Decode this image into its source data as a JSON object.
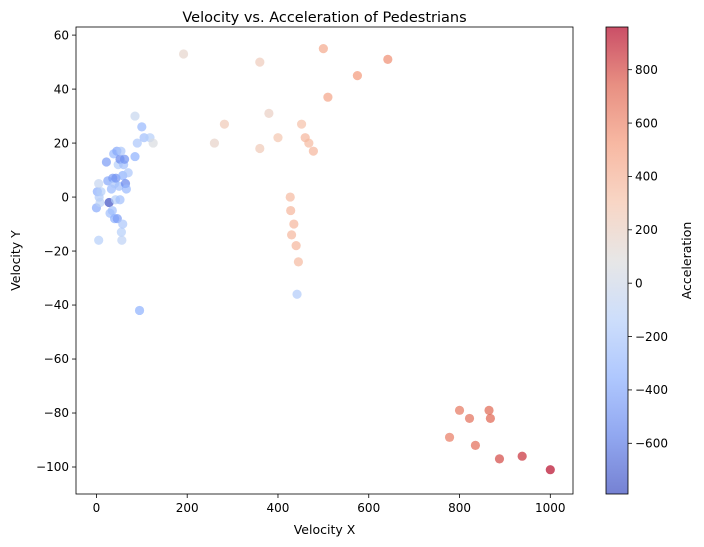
{
  "chart_data": {
    "type": "scatter",
    "title": "Velocity vs. Acceleration of Pedestrians",
    "xlabel": "Velocity X",
    "ylabel": "Velocity Y",
    "colorbar_label": "Acceleration",
    "xlim": [
      -45,
      1050
    ],
    "ylim": [
      -110,
      63
    ],
    "clim": [
      -790,
      960
    ],
    "x_ticks": [
      0,
      200,
      400,
      600,
      800,
      1000
    ],
    "y_ticks": [
      -100,
      -80,
      -60,
      -40,
      -20,
      0,
      20,
      40,
      60
    ],
    "colorbar_ticks": [
      -600,
      -400,
      -200,
      0,
      200,
      400,
      600,
      800
    ],
    "colormap": "coolwarm",
    "colormap_stops": [
      "#3b4cc0",
      "#6282ea",
      "#8db0fe",
      "#b8d0f9",
      "#dddcdc",
      "#f5c4ac",
      "#f49a7b",
      "#de604d",
      "#b40426"
    ],
    "marker_alpha": 0.7,
    "grid": false,
    "points": [
      {
        "x": 0,
        "y": -4,
        "c": -380
      },
      {
        "x": 2,
        "y": 2,
        "c": -360
      },
      {
        "x": 5,
        "y": -16,
        "c": -150
      },
      {
        "x": 5,
        "y": 5,
        "c": -60
      },
      {
        "x": 6,
        "y": 0,
        "c": -170
      },
      {
        "x": 8,
        "y": -2,
        "c": -120
      },
      {
        "x": 10,
        "y": 2,
        "c": -150
      },
      {
        "x": 22,
        "y": 13,
        "c": -450
      },
      {
        "x": 25,
        "y": 6,
        "c": -400
      },
      {
        "x": 28,
        "y": -2,
        "c": -780
      },
      {
        "x": 30,
        "y": -6,
        "c": -250
      },
      {
        "x": 33,
        "y": 3,
        "c": -300
      },
      {
        "x": 35,
        "y": -5,
        "c": -250
      },
      {
        "x": 36,
        "y": 7,
        "c": -450
      },
      {
        "x": 38,
        "y": 16,
        "c": -300
      },
      {
        "x": 40,
        "y": 5,
        "c": -200
      },
      {
        "x": 40,
        "y": -8,
        "c": -350
      },
      {
        "x": 42,
        "y": -1,
        "c": -150
      },
      {
        "x": 43,
        "y": 7,
        "c": -500
      },
      {
        "x": 45,
        "y": 17,
        "c": -400
      },
      {
        "x": 46,
        "y": -8,
        "c": -450
      },
      {
        "x": 48,
        "y": 12,
        "c": -150
      },
      {
        "x": 50,
        "y": 4,
        "c": -250
      },
      {
        "x": 52,
        "y": 14,
        "c": -550
      },
      {
        "x": 52,
        "y": -1,
        "c": -250
      },
      {
        "x": 54,
        "y": 17,
        "c": -200
      },
      {
        "x": 55,
        "y": -13,
        "c": -150
      },
      {
        "x": 56,
        "y": -16,
        "c": -100
      },
      {
        "x": 58,
        "y": -10,
        "c": -200
      },
      {
        "x": 58,
        "y": 8,
        "c": -350
      },
      {
        "x": 60,
        "y": 12,
        "c": -250
      },
      {
        "x": 62,
        "y": 14,
        "c": -500
      },
      {
        "x": 64,
        "y": 5,
        "c": -550
      },
      {
        "x": 66,
        "y": 3,
        "c": -300
      },
      {
        "x": 70,
        "y": 9,
        "c": -200
      },
      {
        "x": 85,
        "y": 30,
        "c": -50
      },
      {
        "x": 85,
        "y": 15,
        "c": -350
      },
      {
        "x": 90,
        "y": 20,
        "c": -200
      },
      {
        "x": 95,
        "y": -42,
        "c": -350
      },
      {
        "x": 100,
        "y": 26,
        "c": -300
      },
      {
        "x": 105,
        "y": 22,
        "c": -250
      },
      {
        "x": 118,
        "y": 22,
        "c": -150
      },
      {
        "x": 125,
        "y": 20,
        "c": 60
      },
      {
        "x": 192,
        "y": 53,
        "c": 160
      },
      {
        "x": 260,
        "y": 20,
        "c": 180
      },
      {
        "x": 282,
        "y": 27,
        "c": 260
      },
      {
        "x": 360,
        "y": 50,
        "c": 240
      },
      {
        "x": 360,
        "y": 18,
        "c": 260
      },
      {
        "x": 380,
        "y": 31,
        "c": 200
      },
      {
        "x": 400,
        "y": 22,
        "c": 290
      },
      {
        "x": 427,
        "y": 0,
        "c": 360
      },
      {
        "x": 428,
        "y": -5,
        "c": 380
      },
      {
        "x": 430,
        "y": -14,
        "c": 370
      },
      {
        "x": 435,
        "y": -10,
        "c": 380
      },
      {
        "x": 440,
        "y": -18,
        "c": 380
      },
      {
        "x": 442,
        "y": -36,
        "c": -170
      },
      {
        "x": 445,
        "y": -24,
        "c": 360
      },
      {
        "x": 452,
        "y": 27,
        "c": 320
      },
      {
        "x": 460,
        "y": 22,
        "c": 380
      },
      {
        "x": 468,
        "y": 20,
        "c": 360
      },
      {
        "x": 478,
        "y": 17,
        "c": 380
      },
      {
        "x": 500,
        "y": 55,
        "c": 450
      },
      {
        "x": 510,
        "y": 37,
        "c": 470
      },
      {
        "x": 575,
        "y": 45,
        "c": 530
      },
      {
        "x": 642,
        "y": 51,
        "c": 570
      },
      {
        "x": 778,
        "y": -89,
        "c": 640
      },
      {
        "x": 800,
        "y": -79,
        "c": 660
      },
      {
        "x": 822,
        "y": -82,
        "c": 690
      },
      {
        "x": 835,
        "y": -92,
        "c": 700
      },
      {
        "x": 865,
        "y": -79,
        "c": 720
      },
      {
        "x": 868,
        "y": -82,
        "c": 730
      },
      {
        "x": 888,
        "y": -97,
        "c": 800
      },
      {
        "x": 938,
        "y": -96,
        "c": 860
      },
      {
        "x": 1000,
        "y": -101,
        "c": 950
      }
    ]
  }
}
